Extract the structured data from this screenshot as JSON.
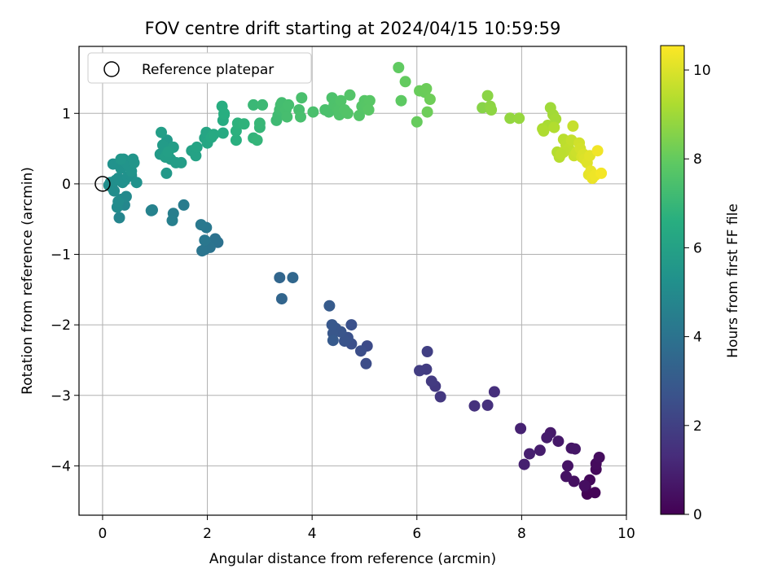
{
  "chart_data": {
    "type": "scatter",
    "title": "FOV centre drift starting at 2024/04/15 10:59:59",
    "xlabel": "Angular distance from reference (arcmin)",
    "ylabel": "Rotation from reference (arcmin)",
    "xlim": [
      -0.45,
      10.0
    ],
    "ylim": [
      -4.7,
      1.95
    ],
    "xticks": [
      0,
      2,
      4,
      6,
      8,
      10
    ],
    "xtick_labels": [
      "0",
      "2",
      "4",
      "6",
      "8",
      "10"
    ],
    "yticks": [
      -4,
      -3,
      -2,
      -1,
      0,
      1
    ],
    "ytick_labels": [
      "−4",
      "−3",
      "−2",
      "−1",
      "0",
      "1"
    ],
    "grid": true,
    "legend": {
      "position": "top-left",
      "entries": [
        {
          "label": "Reference platepar",
          "marker": "open-circle"
        }
      ]
    },
    "colorbar": {
      "label": "Hours from first FF file",
      "colormap": "viridis",
      "range": [
        0,
        10.55
      ],
      "ticks": [
        0,
        2,
        4,
        6,
        8,
        10
      ],
      "tick_labels": [
        "0",
        "2",
        "4",
        "6",
        "8",
        "10"
      ]
    },
    "reference_point": [
      0,
      0
    ],
    "points": [
      [
        9.25,
        -4.4,
        0.05
      ],
      [
        9.4,
        -4.38,
        0.1
      ],
      [
        9.22,
        -4.3,
        0.15
      ],
      [
        9.3,
        -4.2,
        0.2
      ],
      [
        9.42,
        -4.05,
        0.25
      ],
      [
        9.42,
        -3.97,
        0.3
      ],
      [
        9.48,
        -3.88,
        0.35
      ],
      [
        9.2,
        -4.28,
        0.4
      ],
      [
        9.0,
        -4.22,
        0.45
      ],
      [
        8.85,
        -4.15,
        0.5
      ],
      [
        8.88,
        -4.0,
        0.55
      ],
      [
        8.95,
        -3.75,
        0.6
      ],
      [
        9.02,
        -3.76,
        0.65
      ],
      [
        8.7,
        -3.65,
        0.7
      ],
      [
        8.55,
        -3.53,
        0.75
      ],
      [
        8.48,
        -3.6,
        0.8
      ],
      [
        8.35,
        -3.78,
        0.85
      ],
      [
        8.15,
        -3.83,
        0.9
      ],
      [
        8.05,
        -3.98,
        0.95
      ],
      [
        7.98,
        -3.47,
        1.0
      ],
      [
        7.48,
        -2.95,
        1.4
      ],
      [
        7.35,
        -3.14,
        1.45
      ],
      [
        7.1,
        -3.15,
        1.5
      ],
      [
        6.45,
        -3.02,
        1.7
      ],
      [
        6.35,
        -2.87,
        1.75
      ],
      [
        6.28,
        -2.8,
        1.8
      ],
      [
        6.18,
        -2.63,
        1.85
      ],
      [
        6.05,
        -2.65,
        1.9
      ],
      [
        6.2,
        -2.38,
        1.95
      ],
      [
        5.05,
        -2.3,
        2.4
      ],
      [
        5.03,
        -2.55,
        2.45
      ],
      [
        4.93,
        -2.37,
        2.5
      ],
      [
        4.75,
        -2.27,
        2.55
      ],
      [
        4.75,
        -2.0,
        2.6
      ],
      [
        4.68,
        -2.18,
        2.65
      ],
      [
        4.62,
        -2.23,
        2.7
      ],
      [
        4.55,
        -2.1,
        2.75
      ],
      [
        4.45,
        -2.05,
        2.8
      ],
      [
        4.4,
        -2.12,
        2.85
      ],
      [
        4.38,
        -2.0,
        2.9
      ],
      [
        4.4,
        -2.22,
        2.95
      ],
      [
        4.33,
        -1.73,
        3.0
      ],
      [
        3.42,
        -1.63,
        3.4
      ],
      [
        3.38,
        -1.33,
        3.45
      ],
      [
        3.63,
        -1.33,
        3.5
      ],
      [
        2.2,
        -0.83,
        3.9
      ],
      [
        2.15,
        -0.78,
        3.95
      ],
      [
        2.05,
        -0.9,
        4.0
      ],
      [
        1.95,
        -0.93,
        4.05
      ],
      [
        1.9,
        -0.95,
        4.1
      ],
      [
        1.95,
        -0.8,
        4.15
      ],
      [
        1.98,
        -0.62,
        4.2
      ],
      [
        1.88,
        -0.58,
        4.25
      ],
      [
        1.55,
        -0.3,
        4.4
      ],
      [
        1.35,
        -0.42,
        4.45
      ],
      [
        1.33,
        -0.52,
        4.5
      ],
      [
        0.95,
        -0.37,
        4.6
      ],
      [
        0.93,
        -0.38,
        4.65
      ],
      [
        0.32,
        -0.48,
        4.75
      ],
      [
        0.42,
        -0.3,
        4.85
      ],
      [
        0.35,
        -0.22,
        4.9
      ],
      [
        0.45,
        -0.18,
        4.95
      ],
      [
        0.28,
        -0.33,
        5.0
      ],
      [
        0.3,
        -0.25,
        5.05
      ],
      [
        0.22,
        -0.1,
        5.1
      ],
      [
        0.18,
        -0.05,
        5.12
      ],
      [
        0.15,
        0.02,
        5.14
      ],
      [
        0.12,
        -0.02,
        5.16
      ],
      [
        0.25,
        0.05,
        5.18
      ],
      [
        0.3,
        0.08,
        5.2
      ],
      [
        0.38,
        0.02,
        5.22
      ],
      [
        0.42,
        0.05,
        5.24
      ],
      [
        0.48,
        0.1,
        5.26
      ],
      [
        0.55,
        0.12,
        5.28
      ],
      [
        0.65,
        0.02,
        5.3
      ],
      [
        0.2,
        0.28,
        5.32
      ],
      [
        0.35,
        0.22,
        5.34
      ],
      [
        0.4,
        0.35,
        5.36
      ],
      [
        0.45,
        0.3,
        5.38
      ],
      [
        0.5,
        0.25,
        5.4
      ],
      [
        0.55,
        0.18,
        5.42
      ],
      [
        0.58,
        0.35,
        5.44
      ],
      [
        0.6,
        0.3,
        5.46
      ],
      [
        0.35,
        0.35,
        5.48
      ],
      [
        1.22,
        0.15,
        5.6
      ],
      [
        1.23,
        0.62,
        5.65
      ],
      [
        1.18,
        0.5,
        5.68
      ],
      [
        1.1,
        0.42,
        5.7
      ],
      [
        1.15,
        0.55,
        5.72
      ],
      [
        1.2,
        0.45,
        5.74
      ],
      [
        1.25,
        0.4,
        5.76
      ],
      [
        1.3,
        0.35,
        5.78
      ],
      [
        1.35,
        0.52,
        5.8
      ],
      [
        1.4,
        0.3,
        5.82
      ],
      [
        1.5,
        0.3,
        5.84
      ],
      [
        1.12,
        0.73,
        5.86
      ],
      [
        1.2,
        0.38,
        5.88
      ],
      [
        1.25,
        0.45,
        5.9
      ],
      [
        1.7,
        0.47,
        6.0
      ],
      [
        1.78,
        0.4,
        6.05
      ],
      [
        1.8,
        0.52,
        6.1
      ],
      [
        1.95,
        0.65,
        6.15
      ],
      [
        1.98,
        0.73,
        6.2
      ],
      [
        2.0,
        0.58,
        6.25
      ],
      [
        2.08,
        0.66,
        6.3
      ],
      [
        2.12,
        0.7,
        6.35
      ],
      [
        2.3,
        0.72,
        6.4
      ],
      [
        2.3,
        0.9,
        6.45
      ],
      [
        2.32,
        0.98,
        6.5
      ],
      [
        2.28,
        1.1,
        6.55
      ],
      [
        2.32,
        1.0,
        6.6
      ],
      [
        2.55,
        0.62,
        6.65
      ],
      [
        2.55,
        0.75,
        6.7
      ],
      [
        2.58,
        0.86,
        6.75
      ],
      [
        2.7,
        0.85,
        6.8
      ],
      [
        2.88,
        0.65,
        6.85
      ],
      [
        2.95,
        0.62,
        6.9
      ],
      [
        3.0,
        0.8,
        6.95
      ],
      [
        3.0,
        0.86,
        7.0
      ],
      [
        2.88,
        1.12,
        7.05
      ],
      [
        3.05,
        1.12,
        7.1
      ],
      [
        3.32,
        0.9,
        7.15
      ],
      [
        3.35,
        0.97,
        7.2
      ],
      [
        3.38,
        1.05,
        7.25
      ],
      [
        3.4,
        1.12,
        7.28
      ],
      [
        3.42,
        1.15,
        7.3
      ],
      [
        3.5,
        1.05,
        7.32
      ],
      [
        3.52,
        0.95,
        7.34
      ],
      [
        3.55,
        1.12,
        7.36
      ],
      [
        3.75,
        1.05,
        7.38
      ],
      [
        3.78,
        0.95,
        7.4
      ],
      [
        3.8,
        1.22,
        7.42
      ],
      [
        4.02,
        1.02,
        7.44
      ],
      [
        4.25,
        1.05,
        7.46
      ],
      [
        4.32,
        1.02,
        7.48
      ],
      [
        4.38,
        1.22,
        7.5
      ],
      [
        4.42,
        1.12,
        7.52
      ],
      [
        4.48,
        1.08,
        7.54
      ],
      [
        4.52,
        1.05,
        7.56
      ],
      [
        4.52,
        0.98,
        7.58
      ],
      [
        4.55,
        1.18,
        7.6
      ],
      [
        4.62,
        1.05,
        7.62
      ],
      [
        4.68,
        1.0,
        7.64
      ],
      [
        4.72,
        1.26,
        7.66
      ],
      [
        4.9,
        0.97,
        7.68
      ],
      [
        4.95,
        1.1,
        7.7
      ],
      [
        5.0,
        1.18,
        7.72
      ],
      [
        5.05,
        1.1,
        7.74
      ],
      [
        5.1,
        1.18,
        7.76
      ],
      [
        5.08,
        1.05,
        7.78
      ],
      [
        5.7,
        1.18,
        7.9
      ],
      [
        5.65,
        1.65,
        7.95
      ],
      [
        5.78,
        1.45,
        8.0
      ],
      [
        6.0,
        0.88,
        8.05
      ],
      [
        6.05,
        1.32,
        8.1
      ],
      [
        6.15,
        1.3,
        8.12
      ],
      [
        6.18,
        1.35,
        8.14
      ],
      [
        6.2,
        1.02,
        8.16
      ],
      [
        6.25,
        1.2,
        8.18
      ],
      [
        7.25,
        1.08,
        8.6
      ],
      [
        7.35,
        1.25,
        8.65
      ],
      [
        7.4,
        1.1,
        8.7
      ],
      [
        7.42,
        1.05,
        8.72
      ],
      [
        7.78,
        0.93,
        8.8
      ],
      [
        7.95,
        0.93,
        8.85
      ],
      [
        8.55,
        1.08,
        9.0
      ],
      [
        8.6,
        0.98,
        9.05
      ],
      [
        8.65,
        0.92,
        9.1
      ],
      [
        8.5,
        0.83,
        9.15
      ],
      [
        8.4,
        0.78,
        9.2
      ],
      [
        8.42,
        0.75,
        9.25
      ],
      [
        8.62,
        0.8,
        9.3
      ],
      [
        8.68,
        0.45,
        9.35
      ],
      [
        8.72,
        0.38,
        9.4
      ],
      [
        8.8,
        0.63,
        9.45
      ],
      [
        8.85,
        0.55,
        9.5
      ],
      [
        8.9,
        0.5,
        9.55
      ],
      [
        8.95,
        0.62,
        9.6
      ],
      [
        8.98,
        0.82,
        9.65
      ],
      [
        9.0,
        0.4,
        9.7
      ],
      [
        9.05,
        0.45,
        9.75
      ],
      [
        9.1,
        0.58,
        9.8
      ],
      [
        9.12,
        0.5,
        9.85
      ],
      [
        9.15,
        0.38,
        9.9
      ],
      [
        9.18,
        0.42,
        9.95
      ],
      [
        9.2,
        0.35,
        10.0
      ],
      [
        9.25,
        0.3,
        10.05
      ],
      [
        9.3,
        0.4,
        10.1
      ],
      [
        9.28,
        0.13,
        10.15
      ],
      [
        9.32,
        0.18,
        10.2
      ],
      [
        9.35,
        0.08,
        10.25
      ],
      [
        9.4,
        0.12,
        10.3
      ],
      [
        9.45,
        0.47,
        10.35
      ],
      [
        9.52,
        0.15,
        10.4
      ],
      [
        8.8,
        0.45,
        9.52
      ],
      [
        8.75,
        0.42,
        9.48
      ]
    ]
  }
}
